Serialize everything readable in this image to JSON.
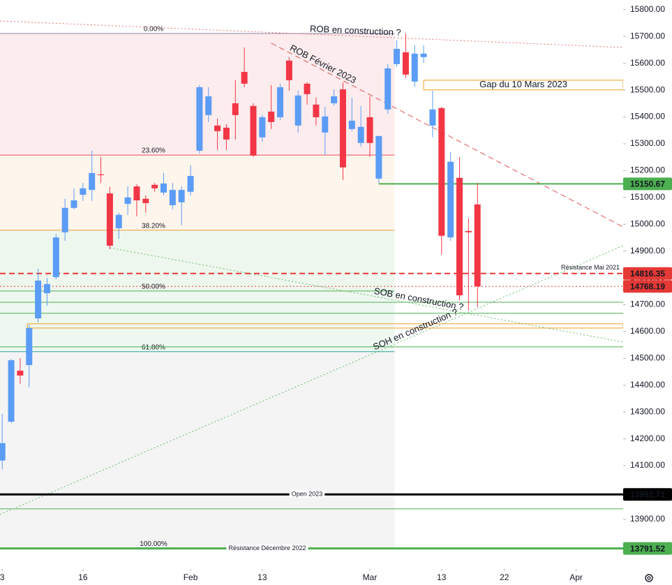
{
  "chart_data": {
    "type": "candlestick",
    "open": [
      14119,
      14264,
      14454,
      14475,
      14649,
      14743,
      14803,
      14970,
      15061,
      15110,
      15128,
      15186,
      15115,
      14985,
      15076,
      15141,
      15095,
      15147,
      15118,
      15071,
      15082,
      15121,
      15274,
      15407,
      15368,
      15360,
      15451,
      15568,
      15441,
      15324,
      15420,
      15399,
      15610,
      15368,
      15524,
      15446,
      15342,
      15451,
      15503,
      15355,
      15303,
      15399,
      15170,
      15428,
      15597,
      15641,
      15532,
      15623,
      15368,
      15433,
      14951,
      15173,
      14975,
      15074
    ],
    "high": [
      14293,
      14498,
      14501,
      14626,
      14834,
      14800,
      14964,
      15095,
      15134,
      15154,
      15274,
      15251,
      15139,
      15043,
      15141,
      15149,
      15108,
      15154,
      15191,
      15154,
      15141,
      15220,
      15519,
      15511,
      15394,
      15373,
      15537,
      15659,
      15451,
      15407,
      15519,
      15524,
      15623,
      15498,
      15529,
      15472,
      15438,
      15503,
      15529,
      15472,
      15441,
      15477,
      15329,
      15597,
      15685,
      15711,
      15667,
      15667,
      15498,
      15438,
      15269,
      15251,
      15022,
      15154
    ],
    "low": [
      14087,
      14259,
      14405,
      14392,
      14634,
      14696,
      14795,
      14938,
      15056,
      15087,
      15087,
      15154,
      14907,
      14946,
      15035,
      15030,
      15043,
      15121,
      15108,
      15056,
      14996,
      15108,
      15264,
      15381,
      15277,
      15277,
      15316,
      15511,
      15251,
      15308,
      15355,
      15389,
      15498,
      15342,
      15446,
      15368,
      15259,
      15441,
      15165,
      15347,
      15290,
      15251,
      15154,
      15412,
      15587,
      15545,
      15511,
      15602,
      15324,
      14886,
      14938,
      14717,
      14678,
      14691
    ],
    "close": [
      14184,
      14493,
      14436,
      14613,
      14790,
      14777,
      14951,
      15061,
      15089,
      15134,
      15191,
      15183,
      14920,
      15035,
      15100,
      15089,
      15079,
      15134,
      15152,
      15128,
      15128,
      15180,
      15511,
      15477,
      15347,
      15316,
      15407,
      15524,
      15256,
      15399,
      15381,
      15511,
      15537,
      15480,
      15485,
      15399,
      15402,
      15477,
      15212,
      15386,
      15363,
      15303,
      15329,
      15581,
      15654,
      15558,
      15636,
      15636,
      15428,
      14957,
      15233,
      14735,
      14970,
      14768.19
    ],
    "up_color": "#5b9cf6",
    "down_color": "#f23645",
    "xlim": [
      -0.25,
      69.25
    ],
    "ylim": [
      13715,
      15836
    ],
    "yticks": [
      {
        "value": 15800,
        "label": "15800.00"
      },
      {
        "value": 15700,
        "label": "15700.00"
      },
      {
        "value": 15600,
        "label": "15600.00"
      },
      {
        "value": 15500,
        "label": "15500.00"
      },
      {
        "value": 15400,
        "label": "15400.00"
      },
      {
        "value": 15300,
        "label": "15300.00"
      },
      {
        "value": 15200,
        "label": "15200.00"
      },
      {
        "value": 15100,
        "label": "15100.00"
      },
      {
        "value": 15000,
        "label": "15000.00"
      },
      {
        "value": 14900,
        "label": "14900.00"
      },
      {
        "value": 14800,
        "label": "14800.00"
      },
      {
        "value": 14700,
        "label": "14700.00"
      },
      {
        "value": 14600,
        "label": "14600.00"
      },
      {
        "value": 14500,
        "label": "14500.00"
      },
      {
        "value": 14400,
        "label": "14400.00"
      },
      {
        "value": 14300,
        "label": "14300.00"
      },
      {
        "value": 14200,
        "label": "14200.00"
      },
      {
        "value": 14100,
        "label": "14100.00"
      },
      {
        "value": 14000,
        "label": "14000.00"
      },
      {
        "value": 13900,
        "label": "13900.00"
      }
    ],
    "xticks": [
      {
        "value": 0,
        "label": "3"
      },
      {
        "value": 9,
        "label": "16"
      },
      {
        "value": 21,
        "label": "Feb"
      },
      {
        "value": 29,
        "label": "13"
      },
      {
        "value": 41,
        "label": "Mar"
      },
      {
        "value": 49,
        "label": "13"
      },
      {
        "value": 56,
        "label": "22"
      },
      {
        "value": 64,
        "label": "Apr"
      }
    ],
    "fibonacci": {
      "x": [
        -0.25,
        43.75
      ],
      "levels": [
        {
          "label": "0.00%",
          "value": 15711,
          "color": "#8e84a6",
          "zone": "#fdeced"
        },
        {
          "label": "23.60%",
          "value": 15258,
          "color": "#e05656",
          "zone": "#fef5ec"
        },
        {
          "label": "38.20%",
          "value": 14978,
          "color": "#f0a030",
          "zone": "#eef7ee"
        },
        {
          "label": "50.00%",
          "value": 14751,
          "color": "#4caf50",
          "zone": "#eef7f0"
        },
        {
          "label": "61.80%",
          "value": 14525,
          "color": "#26a69a",
          "zone": "#f4f4f4"
        },
        {
          "label": "100.00%",
          "value": 13791.52,
          "color": "#9e9e9e"
        }
      ]
    },
    "price_lines": [
      {
        "value": 15150.67,
        "color": "#4caf50",
        "style": "solid",
        "width": 2,
        "x0": 42
      },
      {
        "value": 14816.35,
        "color": "#e53935",
        "style": "dashed",
        "width": 2,
        "text": "Résistance Mai 2021"
      },
      {
        "value": 14768.19,
        "color": "#e53935",
        "style": "dotted",
        "width": 1
      },
      {
        "value": 13992.71,
        "color": "#000000",
        "style": "solid",
        "width": 3,
        "text": "Open 2023"
      },
      {
        "value": 13791.52,
        "color": "#4caf50",
        "style": "solid",
        "width": 3,
        "text": "Résistance Décembre 2022"
      }
    ],
    "levels": {
      "color": "#4caf50",
      "values": [
        14709,
        14668,
        14543,
        13939
      ]
    },
    "zones": [
      {
        "text": "Gap du 10 Mars 2023",
        "top": 15537,
        "bottom": 15501,
        "x0": 47,
        "color": "#f0a020"
      },
      {
        "top": 14629,
        "bottom": 14613,
        "x0": 2.8,
        "color": "#f0a020"
      }
    ],
    "trendlines": [
      {
        "text": "ROB en construction ?",
        "x": [
          -0.25,
          69.25
        ],
        "y": [
          15758,
          15659
        ],
        "color": "#e57373",
        "style": "dotted"
      },
      {
        "text": "ROB Février 2023",
        "x": [
          30,
          69.25
        ],
        "y": [
          15675,
          14990
        ],
        "color": "#e05656",
        "style": "dashed"
      },
      {
        "text": "SOB en construction ?",
        "x": [
          12,
          69.25
        ],
        "y": [
          14912,
          14561
        ],
        "color": "#66bb6a",
        "style": "dotted"
      },
      {
        "text": "SOH en construction ?",
        "x": [
          -0.25,
          69.25
        ],
        "y": [
          13918,
          14920
        ],
        "color": "#66bb6a",
        "style": "dotted"
      }
    ]
  }
}
